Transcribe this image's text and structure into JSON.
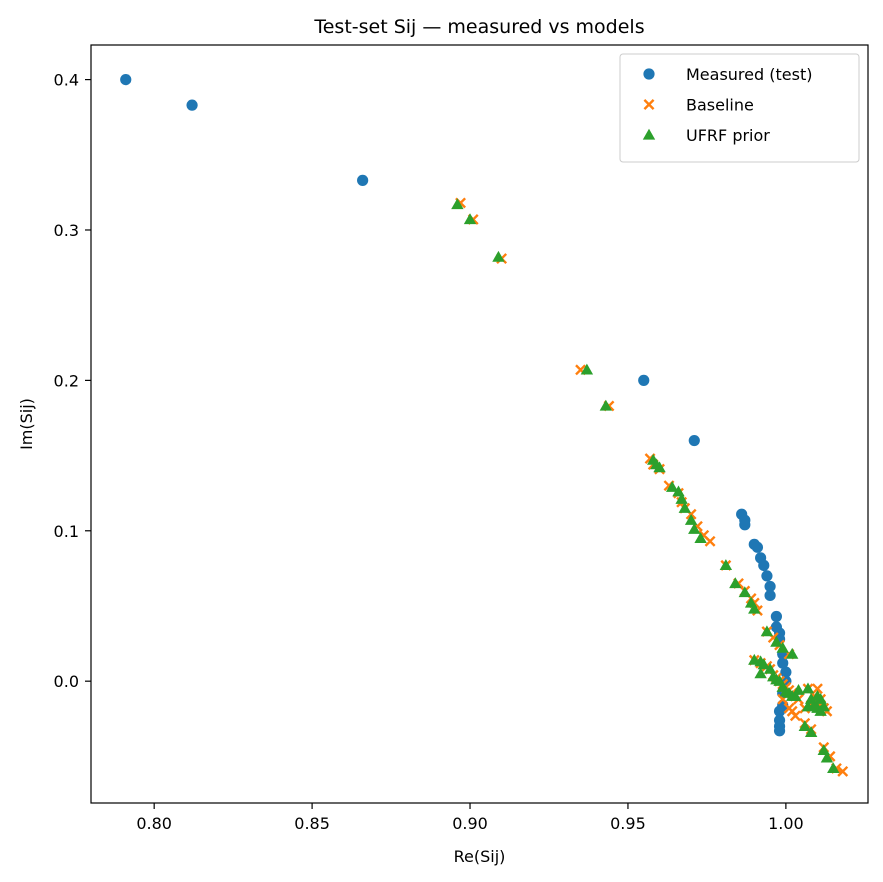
{
  "chart_data": {
    "type": "scatter",
    "title": "Test-set Sij — measured vs models",
    "xlabel": "Re(Sij)",
    "ylabel": "Im(Sij)",
    "xlim": [
      0.78,
      1.026
    ],
    "ylim": [
      -0.081,
      0.423
    ],
    "xticks": [
      0.8,
      0.85,
      0.9,
      0.95,
      1.0
    ],
    "xtick_labels": [
      "0.80",
      "0.85",
      "0.90",
      "0.95",
      "1.00"
    ],
    "yticks": [
      0.0,
      0.1,
      0.2,
      0.3,
      0.4
    ],
    "ytick_labels": [
      "0.0",
      "0.1",
      "0.2",
      "0.3",
      "0.4"
    ],
    "grid": false,
    "legend_position": "top-right",
    "series": [
      {
        "name": "Measured (test)",
        "marker": "circle",
        "color": "#1f77b4",
        "points": [
          [
            0.791,
            0.4
          ],
          [
            0.812,
            0.383
          ],
          [
            0.866,
            0.333
          ],
          [
            0.955,
            0.2
          ],
          [
            0.971,
            0.16
          ],
          [
            0.986,
            0.111
          ],
          [
            0.987,
            0.107
          ],
          [
            0.987,
            0.104
          ],
          [
            0.99,
            0.091
          ],
          [
            0.991,
            0.089
          ],
          [
            0.992,
            0.082
          ],
          [
            0.993,
            0.077
          ],
          [
            0.994,
            0.07
          ],
          [
            0.995,
            0.063
          ],
          [
            0.995,
            0.057
          ],
          [
            0.997,
            0.043
          ],
          [
            0.997,
            0.036
          ],
          [
            0.998,
            0.032
          ],
          [
            0.998,
            0.028
          ],
          [
            0.999,
            0.018
          ],
          [
            0.999,
            0.012
          ],
          [
            1.0,
            0.006
          ],
          [
            1.0,
            0.0
          ],
          [
            0.999,
            -0.008
          ],
          [
            0.999,
            -0.016
          ],
          [
            0.998,
            -0.02
          ],
          [
            0.998,
            -0.026
          ],
          [
            0.998,
            -0.03
          ],
          [
            0.998,
            -0.033
          ]
        ]
      },
      {
        "name": "Baseline",
        "marker": "x",
        "color": "#ff7f0e",
        "points": [
          [
            0.897,
            0.318
          ],
          [
            0.901,
            0.307
          ],
          [
            0.91,
            0.281
          ],
          [
            0.935,
            0.207
          ],
          [
            0.944,
            0.183
          ],
          [
            0.957,
            0.148
          ],
          [
            0.958,
            0.144
          ],
          [
            0.96,
            0.141
          ],
          [
            0.963,
            0.13
          ],
          [
            0.966,
            0.125
          ],
          [
            0.967,
            0.119
          ],
          [
            0.968,
            0.115
          ],
          [
            0.97,
            0.111
          ],
          [
            0.972,
            0.103
          ],
          [
            0.974,
            0.097
          ],
          [
            0.976,
            0.093
          ],
          [
            0.981,
            0.077
          ],
          [
            0.985,
            0.065
          ],
          [
            0.987,
            0.06
          ],
          [
            0.989,
            0.055
          ],
          [
            0.99,
            0.052
          ],
          [
            0.991,
            0.047
          ],
          [
            0.994,
            0.033
          ],
          [
            0.996,
            0.029
          ],
          [
            0.998,
            0.024
          ],
          [
            1.001,
            0.018
          ],
          [
            0.99,
            0.014
          ],
          [
            0.992,
            0.012
          ],
          [
            0.994,
            0.01
          ],
          [
            0.995,
            0.008
          ],
          [
            0.996,
            0.004
          ],
          [
            0.997,
            0.002
          ],
          [
            0.998,
            0.0
          ],
          [
            0.999,
            -0.002
          ],
          [
            1.0,
            -0.004
          ],
          [
            1.001,
            -0.006
          ],
          [
            1.002,
            -0.008
          ],
          [
            1.003,
            -0.01
          ],
          [
            1.004,
            -0.012
          ],
          [
            1.001,
            -0.018
          ],
          [
            1.002,
            -0.02
          ],
          [
            1.003,
            -0.023
          ],
          [
            1.006,
            -0.028
          ],
          [
            1.008,
            -0.032
          ],
          [
            1.012,
            -0.044
          ],
          [
            1.014,
            -0.05
          ],
          [
            1.016,
            -0.058
          ],
          [
            1.018,
            -0.06
          ],
          [
            1.007,
            -0.005
          ],
          [
            1.009,
            -0.01
          ],
          [
            1.01,
            -0.014
          ],
          [
            1.011,
            -0.016
          ],
          [
            1.012,
            -0.018
          ],
          [
            1.013,
            -0.02
          ],
          [
            1.01,
            -0.005
          ],
          [
            1.011,
            -0.012
          ],
          [
            1.008,
            -0.016
          ],
          [
            1.006,
            -0.018
          ],
          [
            0.999,
            -0.012
          ]
        ]
      },
      {
        "name": "UFRF prior",
        "marker": "triangle",
        "color": "#2ca02c",
        "points": [
          [
            0.896,
            0.317
          ],
          [
            0.9,
            0.307
          ],
          [
            0.909,
            0.282
          ],
          [
            0.937,
            0.207
          ],
          [
            0.943,
            0.183
          ],
          [
            0.958,
            0.147
          ],
          [
            0.959,
            0.144
          ],
          [
            0.96,
            0.142
          ],
          [
            0.964,
            0.129
          ],
          [
            0.966,
            0.126
          ],
          [
            0.967,
            0.121
          ],
          [
            0.968,
            0.115
          ],
          [
            0.97,
            0.107
          ],
          [
            0.971,
            0.101
          ],
          [
            0.973,
            0.095
          ],
          [
            0.981,
            0.077
          ],
          [
            0.984,
            0.065
          ],
          [
            0.987,
            0.059
          ],
          [
            0.989,
            0.052
          ],
          [
            0.99,
            0.048
          ],
          [
            0.994,
            0.033
          ],
          [
            0.997,
            0.026
          ],
          [
            0.999,
            0.022
          ],
          [
            1.002,
            0.018
          ],
          [
            0.99,
            0.014
          ],
          [
            0.992,
            0.013
          ],
          [
            0.993,
            0.011
          ],
          [
            0.995,
            0.008
          ],
          [
            0.996,
            0.003
          ],
          [
            0.997,
            0.001
          ],
          [
            0.998,
            0.0
          ],
          [
            0.999,
            -0.004
          ],
          [
            1.0,
            -0.007
          ],
          [
            1.001,
            -0.008
          ],
          [
            1.002,
            -0.01
          ],
          [
            1.003,
            -0.01
          ],
          [
            1.004,
            -0.006
          ],
          [
            0.992,
            0.005
          ],
          [
            1.006,
            -0.03
          ],
          [
            1.008,
            -0.034
          ],
          [
            1.012,
            -0.046
          ],
          [
            1.013,
            -0.051
          ],
          [
            1.015,
            -0.058
          ],
          [
            1.007,
            -0.005
          ],
          [
            1.008,
            -0.012
          ],
          [
            1.009,
            -0.016
          ],
          [
            1.01,
            -0.018
          ],
          [
            1.011,
            -0.02
          ],
          [
            1.012,
            -0.017
          ],
          [
            1.011,
            -0.012
          ],
          [
            1.007,
            -0.017
          ],
          [
            1.01,
            -0.01
          ]
        ]
      }
    ]
  }
}
